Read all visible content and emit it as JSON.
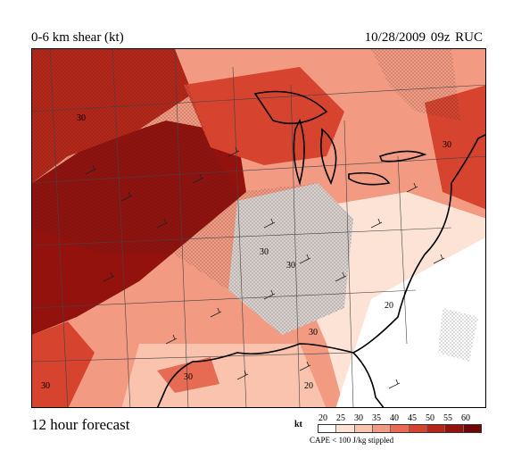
{
  "header": {
    "title": "0-6 km shear (kt)",
    "run": "10/28/2009  09z  RUC"
  },
  "footer": {
    "forecast": "12 hour forecast",
    "unit": "kt",
    "note": "CAPE < 100 J/kg stippled"
  },
  "legend": {
    "labels": [
      "20",
      "25",
      "30",
      "35",
      "40",
      "45",
      "50",
      "55",
      "60"
    ],
    "colors": [
      "#ffffff",
      "#fde3d6",
      "#f9c3ad",
      "#f39a82",
      "#e76a52",
      "#d6432f",
      "#b8261a",
      "#93120e",
      "#6b0606"
    ]
  },
  "map": {
    "contour_labels": [
      "30",
      "30",
      "30",
      "30",
      "30",
      "20",
      "20",
      "30",
      "30"
    ]
  }
}
